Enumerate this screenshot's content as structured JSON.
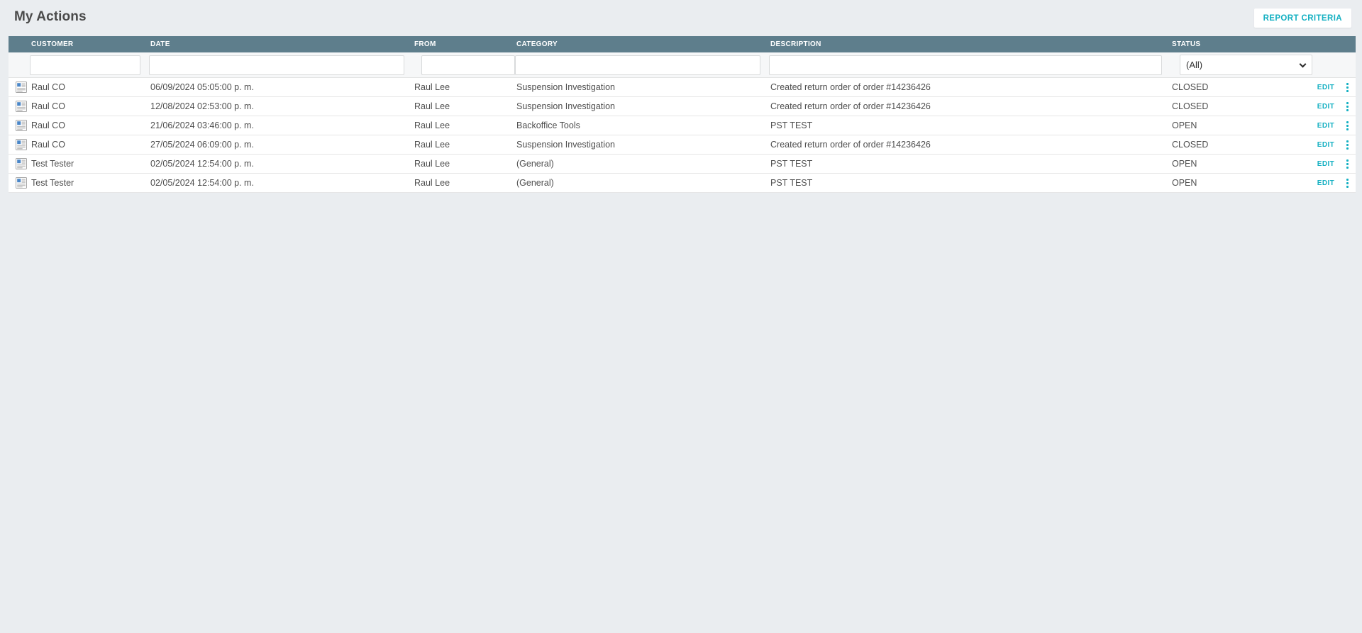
{
  "page": {
    "title": "My Actions"
  },
  "toolbar": {
    "report_criteria_label": "REPORT CRITERIA"
  },
  "table": {
    "columns": [
      "CUSTOMER",
      "DATE",
      "FROM",
      "CATEGORY",
      "DESCRIPTION",
      "STATUS"
    ],
    "filters": {
      "customer": "",
      "date": "",
      "from": "",
      "category": "",
      "description": "",
      "status_selected": "(All)"
    },
    "row_actions": {
      "edit_label": "EDIT",
      "menu_icon": "kebab-menu-icon"
    },
    "row_icon": "document-note-icon",
    "rows": [
      {
        "customer": "Raul CO",
        "date": "06/09/2024 05:05:00 p. m.",
        "from": "Raul Lee",
        "category": "Suspension Investigation",
        "description": "Created return order of order #14236426",
        "status": "CLOSED"
      },
      {
        "customer": "Raul CO",
        "date": "12/08/2024 02:53:00 p. m.",
        "from": "Raul Lee",
        "category": "Suspension Investigation",
        "description": "Created return order of order #14236426",
        "status": "CLOSED"
      },
      {
        "customer": "Raul CO",
        "date": "21/06/2024 03:46:00 p. m.",
        "from": "Raul Lee",
        "category": "Backoffice Tools",
        "description": "PST TEST",
        "status": "OPEN"
      },
      {
        "customer": "Raul CO",
        "date": "27/05/2024 06:09:00 p. m.",
        "from": "Raul Lee",
        "category": "Suspension Investigation",
        "description": "Created return order of order #14236426",
        "status": "CLOSED"
      },
      {
        "customer": "Test Tester",
        "date": "02/05/2024 12:54:00 p. m.",
        "from": "Raul Lee",
        "category": "(General)",
        "description": "PST TEST",
        "status": "OPEN"
      },
      {
        "customer": "Test Tester",
        "date": "02/05/2024 12:54:00 p. m.",
        "from": "Raul Lee",
        "category": "(General)",
        "description": "PST TEST",
        "status": "OPEN"
      }
    ]
  },
  "colors": {
    "accent_teal": "#14b0c2",
    "table_header_bg": "#5e7e8c",
    "page_bg": "#eaedf0",
    "row_text": "#4e4e4e"
  }
}
